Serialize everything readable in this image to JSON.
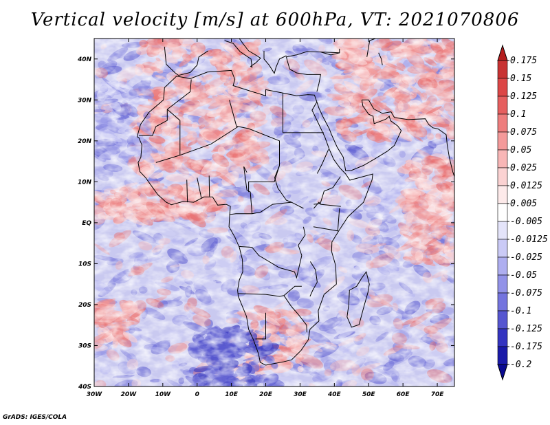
{
  "title": "Vertical velocity [m/s] at 600hPa, VT: 2021070806",
  "credit": "GrADS: IGES/COLA",
  "map": {
    "lon_range": [
      -30,
      75
    ],
    "lat_range": [
      -40,
      45
    ],
    "lon_ticks": [
      {
        "value": -30,
        "label": "30W"
      },
      {
        "value": -20,
        "label": "20W"
      },
      {
        "value": -10,
        "label": "10W"
      },
      {
        "value": 0,
        "label": "0"
      },
      {
        "value": 10,
        "label": "10E"
      },
      {
        "value": 20,
        "label": "20E"
      },
      {
        "value": 30,
        "label": "30E"
      },
      {
        "value": 40,
        "label": "40E"
      },
      {
        "value": 50,
        "label": "50E"
      },
      {
        "value": 60,
        "label": "60E"
      },
      {
        "value": 70,
        "label": "70E"
      }
    ],
    "lat_ticks": [
      {
        "value": 40,
        "label": "40N"
      },
      {
        "value": 30,
        "label": "30N"
      },
      {
        "value": 20,
        "label": "20N"
      },
      {
        "value": 10,
        "label": "10N"
      },
      {
        "value": 0,
        "label": "EQ"
      },
      {
        "value": -10,
        "label": "10S"
      },
      {
        "value": -20,
        "label": "20S"
      },
      {
        "value": -30,
        "label": "30S"
      },
      {
        "value": -40,
        "label": "40S"
      }
    ]
  },
  "colorbar": {
    "levels": [
      "0.175",
      "0.15",
      "0.125",
      "0.1",
      "0.075",
      "0.05",
      "0.025",
      "0.0125",
      "0.005",
      "-0.005",
      "-0.0125",
      "-0.025",
      "-0.05",
      "-0.075",
      "-0.1",
      "-0.125",
      "-0.175",
      "-0.2"
    ],
    "colors": [
      "#b41e1e",
      "#c83232",
      "#dc4646",
      "#e65f5f",
      "#ee7d7d",
      "#f49a9a",
      "#f8b6b6",
      "#fbd2d2",
      "#fdeaea",
      "#ffffff",
      "#e4e4fa",
      "#cacaf6",
      "#aeaef0",
      "#9292e8",
      "#7474de",
      "#5656d0",
      "#3434c0",
      "#1a1aa8",
      "#0a0a90"
    ]
  }
}
